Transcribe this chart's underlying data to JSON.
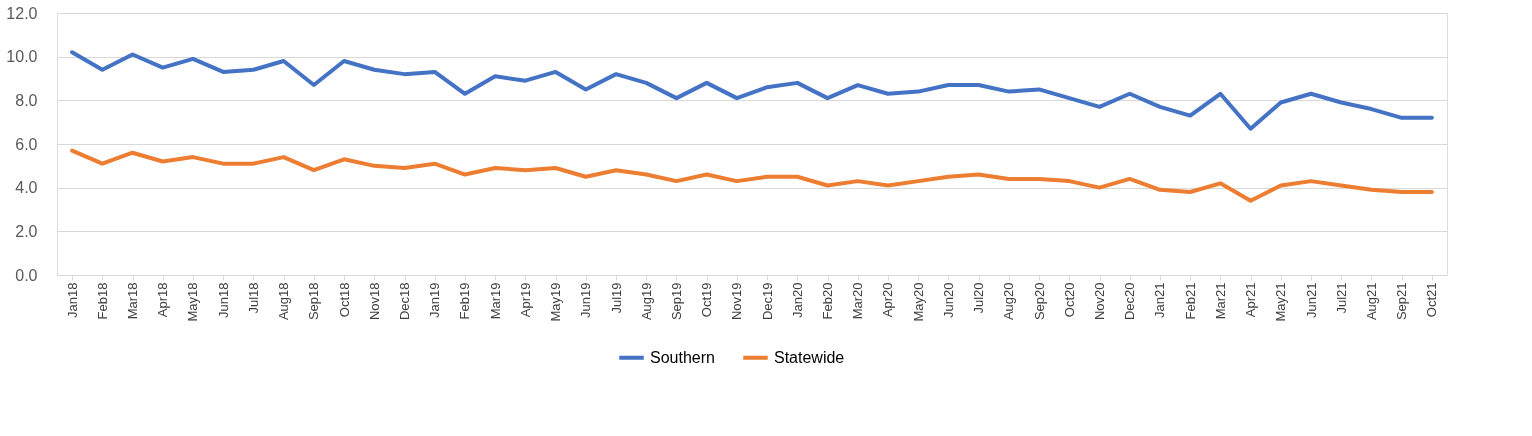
{
  "chart_data": {
    "type": "line",
    "categories": [
      "Jan18",
      "Feb18",
      "Mar18",
      "Apr18",
      "May18",
      "Jun18",
      "Jul18",
      "Aug18",
      "Sep18",
      "Oct18",
      "Nov18",
      "Dec18",
      "Jan19",
      "Feb19",
      "Mar19",
      "Apr19",
      "May19",
      "Jun19",
      "Jul19",
      "Aug19",
      "Sep19",
      "Oct19",
      "Nov19",
      "Dec19",
      "Jan20",
      "Feb20",
      "Mar20",
      "Apr20",
      "May20",
      "Jun20",
      "Jul20",
      "Aug20",
      "Sep20",
      "Oct20",
      "Nov20",
      "Dec20",
      "Jan21",
      "Feb21",
      "Mar21",
      "Apr21",
      "May21",
      "Jun21",
      "Jul21",
      "Aug21",
      "Sep21",
      "Oct21"
    ],
    "series": [
      {
        "name": "Southern",
        "color": "#4472c4",
        "values": [
          10.2,
          9.4,
          10.1,
          9.5,
          9.9,
          9.3,
          9.4,
          9.8,
          8.7,
          9.8,
          9.4,
          9.2,
          9.3,
          8.3,
          9.1,
          8.9,
          9.3,
          8.5,
          9.2,
          8.8,
          8.1,
          8.8,
          8.1,
          8.6,
          8.8,
          8.1,
          8.7,
          8.3,
          8.4,
          8.7,
          8.7,
          8.4,
          8.5,
          8.1,
          7.7,
          8.3,
          7.7,
          7.3,
          8.3,
          6.7,
          7.9,
          8.3,
          7.9,
          7.6,
          7.2,
          7.2
        ]
      },
      {
        "name": "Statewide",
        "color": "#ed7d31",
        "values": [
          5.7,
          5.1,
          5.6,
          5.2,
          5.4,
          5.1,
          5.1,
          5.4,
          4.8,
          5.3,
          5.0,
          4.9,
          5.1,
          4.6,
          4.9,
          4.8,
          4.9,
          4.5,
          4.8,
          4.6,
          4.3,
          4.6,
          4.3,
          4.5,
          4.5,
          4.1,
          4.3,
          4.1,
          4.3,
          4.5,
          4.6,
          4.4,
          4.4,
          4.3,
          4.0,
          4.4,
          3.9,
          3.8,
          4.2,
          3.4,
          4.1,
          4.3,
          4.1,
          3.9,
          3.8,
          3.8
        ]
      }
    ],
    "ylim": [
      0,
      12
    ],
    "yticks": [
      {
        "value": 0,
        "label": "0.0"
      },
      {
        "value": 2,
        "label": "2.0"
      },
      {
        "value": 4,
        "label": "4.0"
      },
      {
        "value": 6,
        "label": "6.0"
      },
      {
        "value": 8,
        "label": "8.0"
      },
      {
        "value": 10,
        "label": "10.0"
      },
      {
        "value": 12,
        "label": "12.0"
      }
    ],
    "grid": "y",
    "legend": "bottom",
    "marker": "none",
    "line_style": "solid"
  }
}
